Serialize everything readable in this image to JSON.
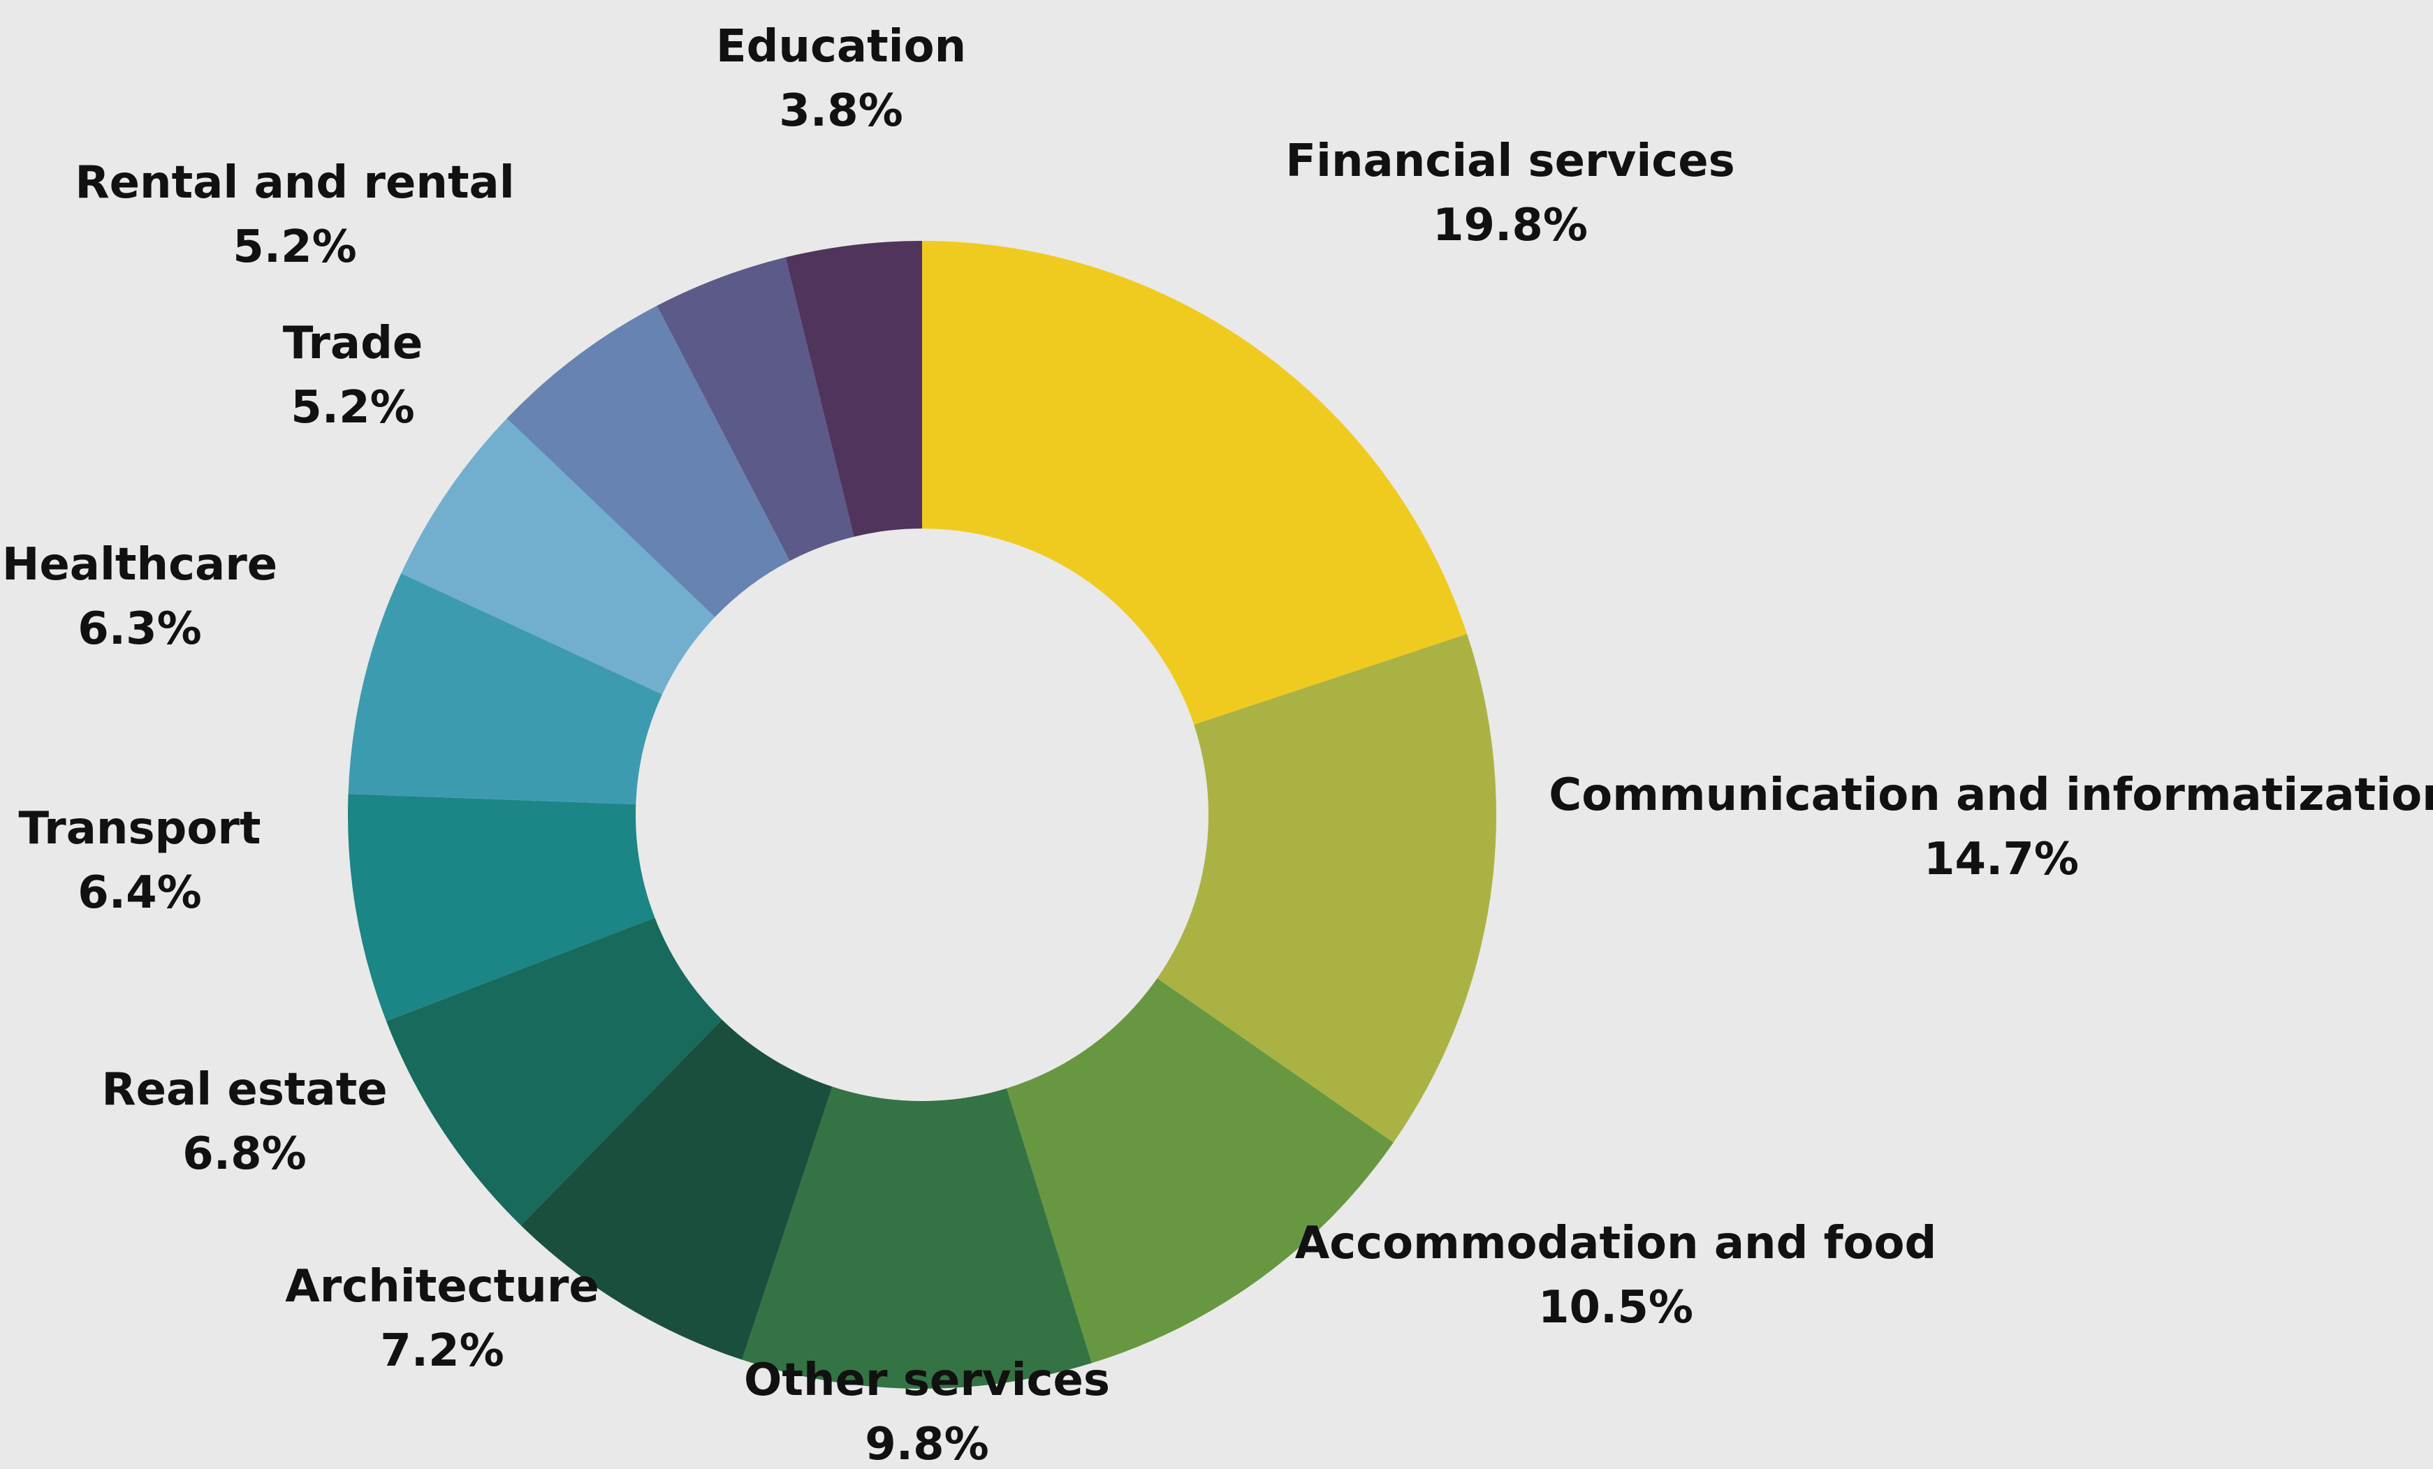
{
  "chart_data": {
    "type": "pie",
    "variant": "donut",
    "background": "#e9e9e9",
    "title": "",
    "legend": "none",
    "labels_outside": true,
    "slices": [
      {
        "name": "Financial services",
        "value": 19.8,
        "label": "19.8%",
        "color": "#f0cb1f"
      },
      {
        "name": "Communication and informatization",
        "value": 14.7,
        "label": "14.7%",
        "color": "#abb244"
      },
      {
        "name": "Accommodation and food",
        "value": 10.5,
        "label": "10.5%",
        "color": "#679841"
      },
      {
        "name": "Other services",
        "value": 9.8,
        "label": "9.8%",
        "color": "#347344"
      },
      {
        "name": "Architecture",
        "value": 7.2,
        "label": "7.2%",
        "color": "#1b4f3d"
      },
      {
        "name": "Real estate",
        "value": 6.8,
        "label": "6.8%",
        "color": "#176a5c"
      },
      {
        "name": "Transport",
        "value": 6.4,
        "label": "6.4%",
        "color": "#1c8586"
      },
      {
        "name": "Healthcare",
        "value": 6.3,
        "label": "6.3%",
        "color": "#3d9bb0"
      },
      {
        "name": "Trade",
        "value": 5.2,
        "label": "5.2%",
        "color": "#72afce"
      },
      {
        "name": "Rental and rental",
        "value": 5.2,
        "label": "5.2%",
        "color": "#6783b1"
      },
      {
        "name": "Education",
        "value": 3.8,
        "label": "3.8%",
        "color": "#5c5a88"
      },
      {
        "name": "",
        "value": 3.8,
        "label": "",
        "color": "#50345b"
      }
    ]
  }
}
